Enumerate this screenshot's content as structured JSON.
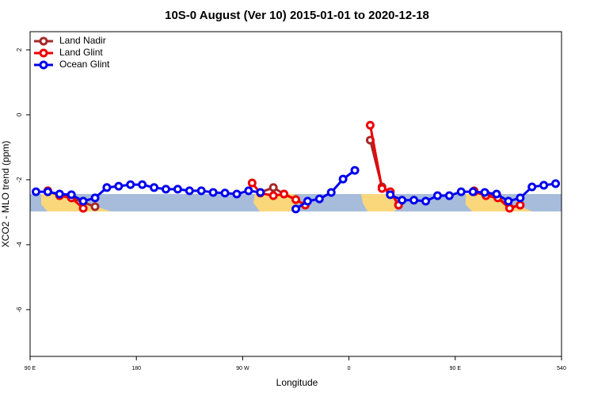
{
  "chart_data": {
    "type": "line",
    "title": "10S-0 August (Ver 10)   2015-01-01 to 2020-12-18",
    "x_label": "Longitude",
    "y_label": "XCO2 - MLO trend (ppm)",
    "xlim": [
      90,
      540
    ],
    "xticks": [
      {
        "value": 90,
        "label": "90 E"
      },
      180,
      {
        "value": 270,
        "label": "90 W"
      },
      {
        "value": 360,
        "label": "0"
      },
      {
        "value": 450,
        "label": "90 E"
      },
      540
    ],
    "ylim": [
      -7.44,
      2.56
    ],
    "yticks": [
      2,
      0,
      -2,
      -4,
      -6
    ],
    "legend": "top-left",
    "series": [
      {
        "name": "Land Nadir",
        "color": "#a52a2a",
        "x": [
          105,
          115,
          125,
          145,
          200,
          285,
          296,
          305,
          315,
          340,
          378,
          388,
          395,
          402,
          430,
          466,
          476,
          486,
          496,
          505
        ],
        "values": [
          -2.37,
          -2.46,
          -2.56,
          -2.83,
          null,
          -2.39,
          -2.24,
          -2.44,
          -2.61,
          null,
          -0.78,
          -2.22,
          -2.37,
          -2.76,
          null,
          -2.34,
          -2.44,
          -2.54,
          -2.86,
          -2.78
        ]
      },
      {
        "name": "Land Glint",
        "color": "#ee0000",
        "x": [
          105,
          115,
          125,
          135,
          200,
          278,
          285,
          296,
          305,
          315,
          323,
          340,
          378,
          388,
          395,
          402,
          430,
          466,
          476,
          486,
          496,
          505
        ],
        "values": [
          -2.34,
          -2.49,
          -2.56,
          -2.88,
          null,
          -2.1,
          -2.41,
          -2.49,
          -2.44,
          -2.61,
          -2.78,
          null,
          -0.32,
          -2.27,
          -2.37,
          -2.78,
          null,
          -2.37,
          -2.49,
          -2.56,
          -2.88,
          -2.78
        ]
      },
      {
        "name": "Ocean Glint",
        "color": "#0000ee",
        "x": [
          95,
          105,
          115,
          125,
          135,
          145,
          155,
          165,
          175,
          185,
          195,
          205,
          215,
          225,
          235,
          245,
          255,
          265,
          275,
          285,
          300,
          315,
          325,
          335,
          345,
          355,
          365,
          380,
          395,
          405,
          415,
          425,
          435,
          445,
          455,
          465,
          475,
          485,
          495,
          505,
          515,
          525,
          535
        ],
        "values": [
          -2.37,
          -2.37,
          -2.44,
          -2.46,
          -2.66,
          -2.56,
          -2.24,
          -2.2,
          -2.15,
          -2.15,
          -2.24,
          -2.29,
          -2.29,
          -2.34,
          -2.34,
          -2.39,
          -2.41,
          -2.44,
          -2.34,
          -2.39,
          null,
          -2.9,
          -2.66,
          -2.59,
          -2.39,
          -1.98,
          -1.71,
          null,
          -2.46,
          -2.63,
          -2.63,
          -2.66,
          -2.49,
          -2.49,
          -2.37,
          -2.37,
          -2.39,
          -2.44,
          -2.66,
          -2.56,
          -2.22,
          -2.17,
          -2.12
        ]
      }
    ]
  }
}
